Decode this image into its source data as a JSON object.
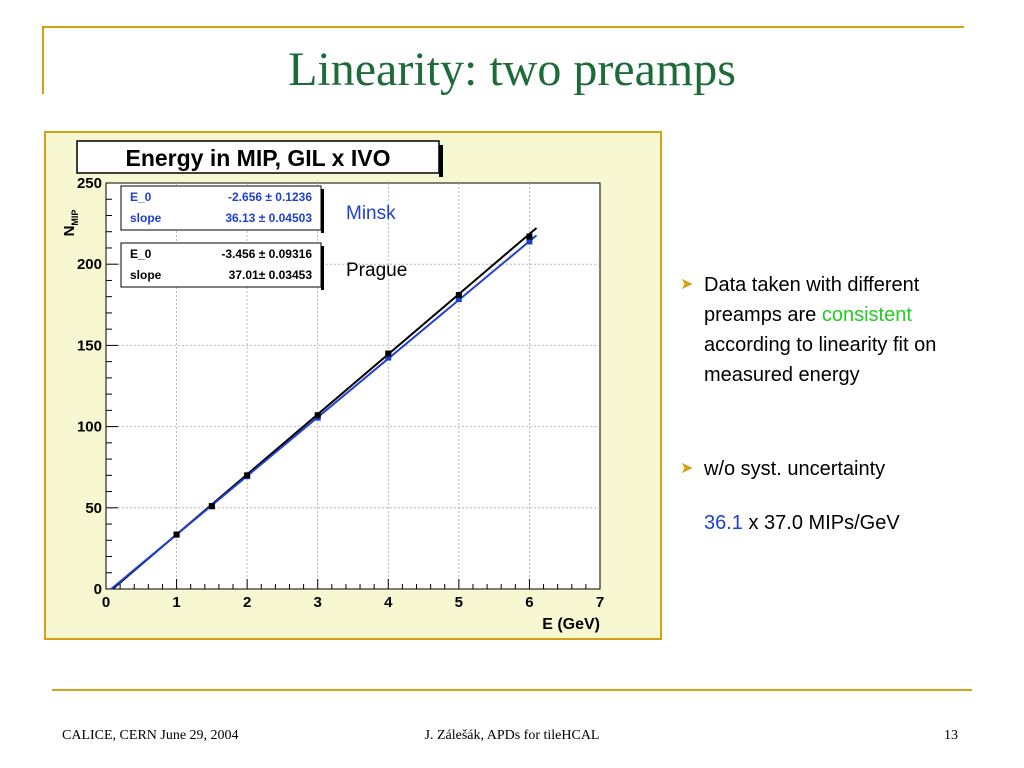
{
  "slide": {
    "title": "Linearity: two preamps"
  },
  "chart_data": {
    "type": "scatter",
    "title": "Energy in MIP, GIL x IVO",
    "xlabel": "E (GeV)",
    "ylabel": "N",
    "ylabel_sub": "MIP",
    "xlim": [
      0,
      7
    ],
    "ylim": [
      0,
      250
    ],
    "xticks": [
      "0",
      "1",
      "2",
      "3",
      "4",
      "5",
      "6",
      "7"
    ],
    "yticks": [
      "0",
      "50",
      "100",
      "150",
      "200",
      "250"
    ],
    "grid": true,
    "series": [
      {
        "name": "Minsk",
        "color": "#1f3fd1",
        "x": [
          1,
          1.5,
          2,
          3,
          4,
          5,
          6
        ],
        "y": [
          33.5,
          51,
          69.5,
          105.5,
          142.5,
          178.5,
          214
        ],
        "fit": {
          "E_0": -2.656,
          "slope": 36.13
        },
        "fit_text": {
          "p0_label": "E_0",
          "p0_value": "-2.656 ± 0.1236",
          "p1_label": "slope",
          "p1_value": "36.13 ± 0.04503"
        }
      },
      {
        "name": "Prague",
        "color": "#000000",
        "x": [
          1,
          1.5,
          2,
          3,
          4,
          5,
          6
        ],
        "y": [
          33.5,
          51,
          70,
          107,
          145,
          181,
          217
        ],
        "fit": {
          "E_0": -3.456,
          "slope": 37.01
        },
        "fit_text": {
          "p0_label": "E_0",
          "p0_value": "-3.456 ± 0.09316",
          "p1_label": "slope",
          "p1_value": "37.01± 0.03453"
        }
      }
    ]
  },
  "bullets": {
    "b1_part1": "Data taken with different preamps are ",
    "b1_highlight": "consistent",
    "b1_part2": " according to linearity fit on measured  energy",
    "b2": "w/o syst. uncertainty",
    "result_minsk": "36.1",
    "result_rest": " x 37.0 MIPs/GeV"
  },
  "footer": {
    "left": "CALICE, CERN June 29, 2004",
    "center": "J. Zálešák, APDs for tileHCAL",
    "page": "13"
  },
  "colors": {
    "accent": "#d4a017",
    "title": "#1e6b3a",
    "highlight_green": "#22cc22",
    "minsk_blue": "#1f3fd1"
  }
}
